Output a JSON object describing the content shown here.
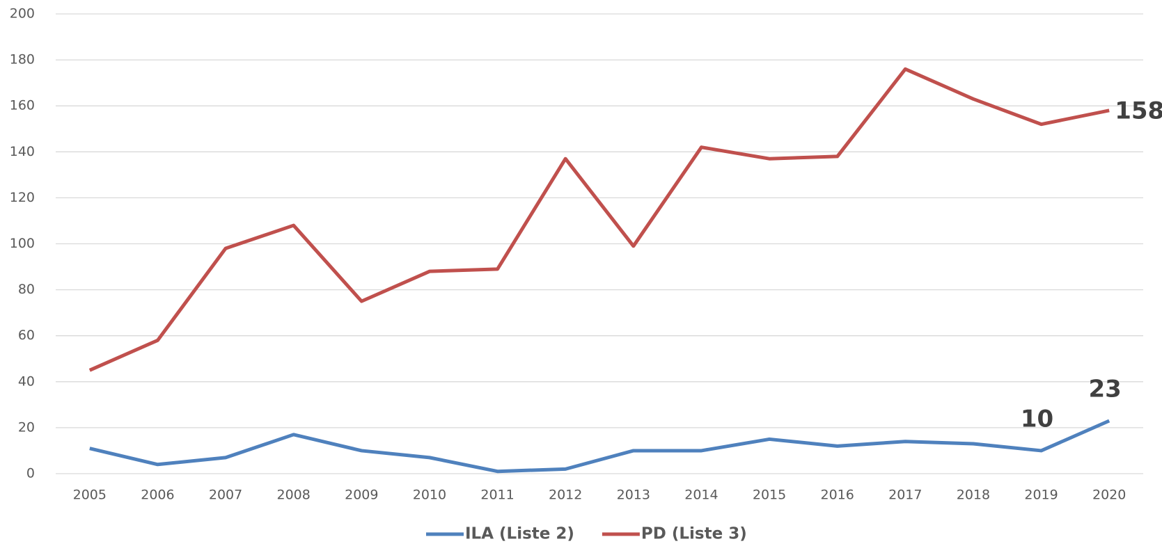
{
  "chart_data": {
    "type": "line",
    "categories": [
      "2005",
      "2006",
      "2007",
      "2008",
      "2009",
      "2010",
      "2011",
      "2012",
      "2013",
      "2014",
      "2015",
      "2016",
      "2017",
      "2018",
      "2019",
      "2020"
    ],
    "series": [
      {
        "name": "ILA (Liste 2)",
        "color": "#4f81bd",
        "values": [
          11,
          4,
          7,
          17,
          10,
          7,
          1,
          2,
          10,
          10,
          15,
          12,
          14,
          13,
          10,
          23
        ],
        "labeled_points": [
          14,
          15
        ],
        "label_position": "above"
      },
      {
        "name": "PD (Liste 3)",
        "color": "#c0504d",
        "values": [
          45,
          58,
          98,
          108,
          75,
          88,
          89,
          137,
          99,
          142,
          137,
          138,
          176,
          163,
          152,
          158
        ],
        "labeled_points": [
          15
        ],
        "label_position": "right"
      }
    ],
    "ylim": [
      0,
      200
    ],
    "yticks": [
      0,
      20,
      40,
      60,
      80,
      100,
      120,
      140,
      160,
      180,
      200
    ],
    "grid": true,
    "legend": "bottom"
  }
}
